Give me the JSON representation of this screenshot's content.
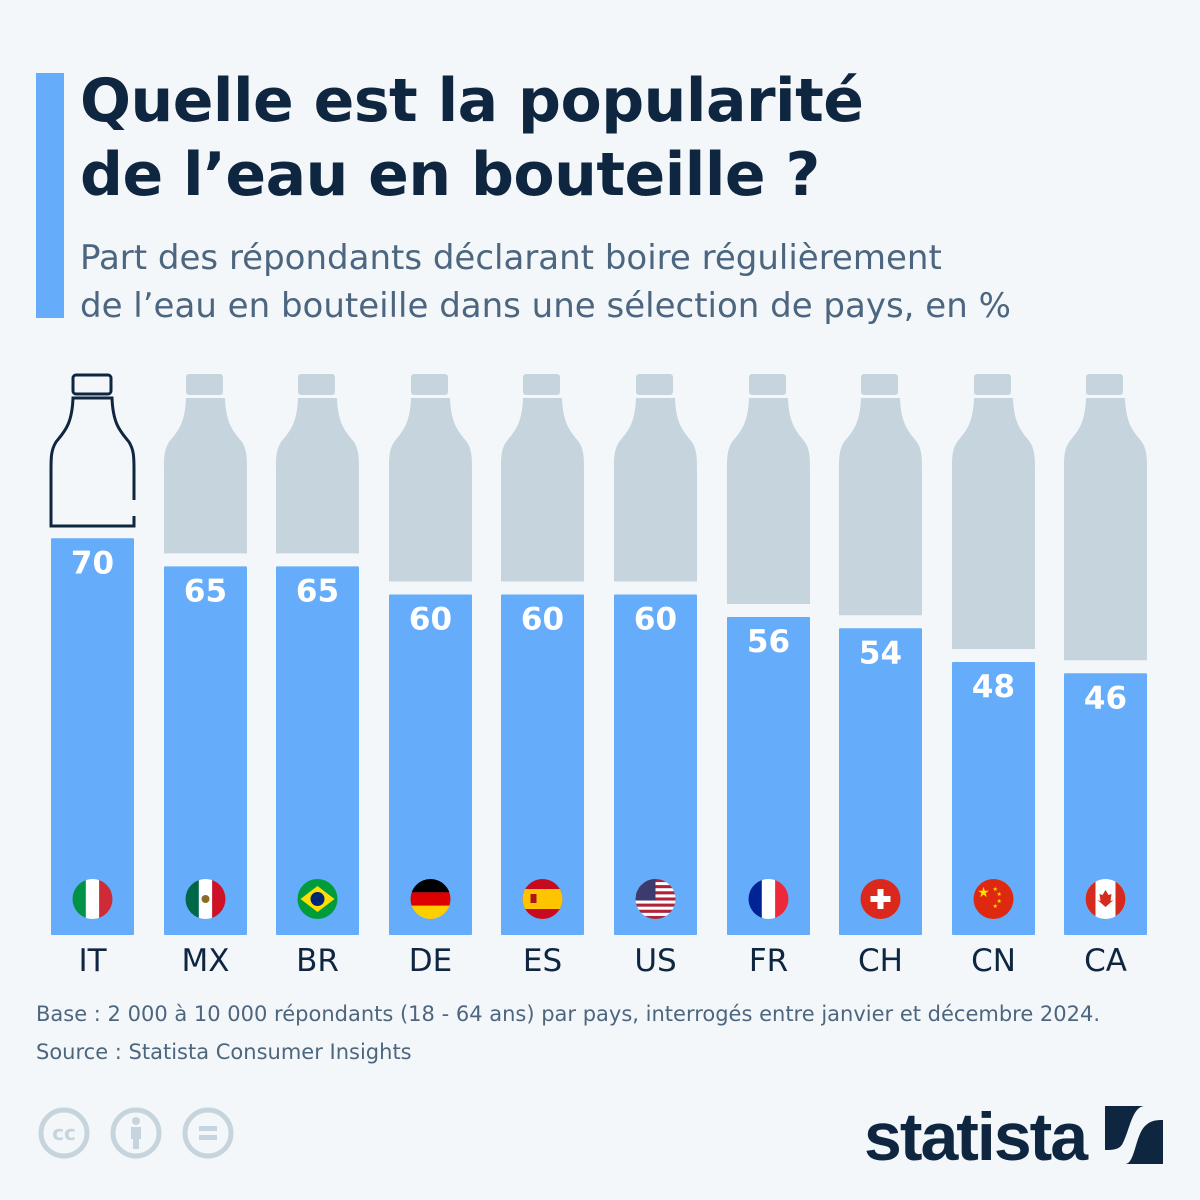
{
  "header": {
    "title_line1": "Quelle est la popularité",
    "title_line2": "de l’eau en bouteille ?",
    "subtitle_line1": "Part des répondants déclarant boire régulièrement",
    "subtitle_line2": "de l’eau en bouteille dans une sélection de pays, en %"
  },
  "chart_data": {
    "type": "bar",
    "categories": [
      "IT",
      "MX",
      "BR",
      "DE",
      "ES",
      "US",
      "FR",
      "CH",
      "CN",
      "CA"
    ],
    "values": [
      70,
      65,
      65,
      60,
      60,
      60,
      56,
      54,
      48,
      46
    ],
    "ylim": [
      0,
      100
    ],
    "unit": "%",
    "grid": false,
    "highlight": "IT",
    "colors": {
      "bar": "#65adfa",
      "bottle": "#c6d5dd",
      "outline": "#0f2640",
      "label": "#ffffff"
    }
  },
  "footer": {
    "base": "Base : 2 000 à 10 000 répondants (18 - 64 ans) par pays, interrogés entre janvier et décembre 2024.",
    "source": "Source : Statista Consumer Insights",
    "logo": "statista"
  },
  "icons": [
    "cc-icon",
    "attribution-icon",
    "no-derivatives-icon",
    "statista-logo"
  ]
}
